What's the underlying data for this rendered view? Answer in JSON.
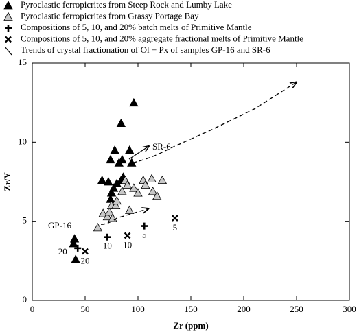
{
  "chart_data": {
    "type": "scatter",
    "xlabel": "Zr (ppm)",
    "ylabel": "Zr/Y",
    "xlim": [
      0,
      300
    ],
    "ylim": [
      0,
      15
    ],
    "xticks": [
      0,
      50,
      100,
      150,
      200,
      250,
      300
    ],
    "yticks": [
      0,
      5,
      10,
      15
    ],
    "annotations": [
      "SR-6",
      "GP-16"
    ],
    "series": [
      {
        "name": "Pyroclastic ferropicrites from Steep Rock and Lumby Lake",
        "marker": "triangle",
        "color": "#000000",
        "x": [
          96,
          84,
          78,
          92,
          74,
          85,
          94,
          82,
          66,
          72,
          86,
          84,
          80,
          77,
          75,
          74,
          40,
          39,
          41
        ],
        "values": [
          12.5,
          11.2,
          9.5,
          9.5,
          8.9,
          8.9,
          8.7,
          8.7,
          7.6,
          7.5,
          7.8,
          7.6,
          7.4,
          7.1,
          6.8,
          6.4,
          3.9,
          3.6,
          2.6
        ]
      },
      {
        "name": "Pyroclastic ferropicrites from Grassy Portage Bay",
        "marker": "triangle",
        "color": "#c8c8c8",
        "x": [
          62,
          67,
          71,
          73,
          75,
          79,
          80,
          85,
          88,
          90,
          92,
          96,
          100,
          105,
          107,
          113,
          114,
          118,
          123,
          76
        ],
        "values": [
          4.6,
          5.5,
          5.3,
          5.6,
          6.0,
          6.0,
          6.3,
          6.9,
          7.6,
          7.3,
          5.7,
          7.1,
          6.8,
          7.6,
          7.3,
          7.7,
          6.9,
          6.6,
          7.6,
          5.2
        ]
      },
      {
        "name": "Compositions of 5, 10, and 20% batch melts of Primitive Mantle",
        "marker": "plus",
        "color": "#000000",
        "x": [
          43,
          71,
          106
        ],
        "values": [
          3.3,
          4.0,
          4.7
        ],
        "labels": [
          "20",
          "10",
          "5"
        ]
      },
      {
        "name": "Compositions of 5, 10, and 20% aggregate fractional melts of Primitive Mantle",
        "marker": "cross",
        "color": "#000000",
        "x": [
          50,
          90,
          135
        ],
        "values": [
          3.1,
          4.1,
          5.2
        ],
        "labels": [
          "20",
          "10",
          "5"
        ]
      },
      {
        "name": "Trends of crystal fractionation of Ol + Px of samples GP-16 and SR-6",
        "marker": "trend",
        "color": "#000000",
        "trends": [
          {
            "x": [
              95,
              130,
              170,
              210,
              250
            ],
            "values": [
              8.7,
              9.6,
              10.8,
              12.1,
              13.8
            ]
          },
          {
            "x": [
              65,
              80,
              95,
              110
            ],
            "values": [
              4.8,
              5.2,
              5.5,
              5.8
            ]
          }
        ]
      }
    ]
  }
}
